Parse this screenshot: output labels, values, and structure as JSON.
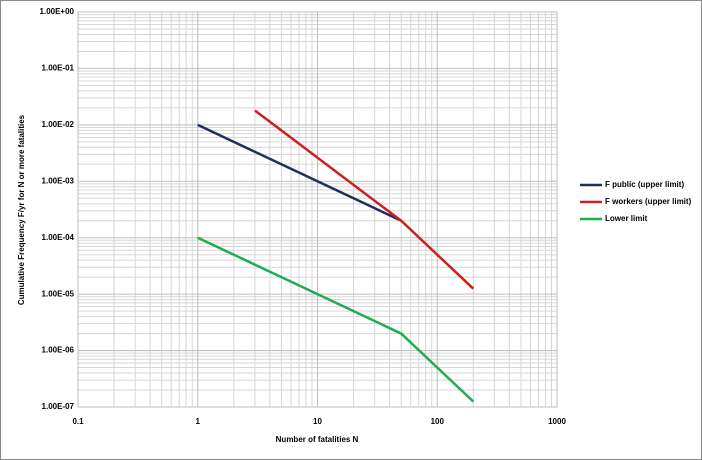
{
  "chart_data": {
    "type": "line",
    "x_label": "Number of fatalities N",
    "y_label": "Cumulative Frequency F/yr for N or more fatalities",
    "log_x": true,
    "log_y": true,
    "grid": true,
    "legend": "right",
    "xlim": [
      0.1,
      1000
    ],
    "xticks": [
      0.1,
      1,
      10,
      100,
      1000
    ],
    "ylim": [
      1e-07,
      1
    ],
    "yticks": [
      {
        "value": 1e-07,
        "label": "1.00E-07"
      },
      {
        "value": 1e-06,
        "label": "1.00E-06"
      },
      {
        "value": 1e-05,
        "label": "1.00E-05"
      },
      {
        "value": 0.0001,
        "label": "1.00E-04"
      },
      {
        "value": 0.001,
        "label": "1.00E-03"
      },
      {
        "value": 0.01,
        "label": "1.00E-02"
      },
      {
        "value": 0.1,
        "label": "1.00E-01"
      },
      {
        "value": 1,
        "label": "1.00E+00"
      }
    ],
    "series": [
      {
        "name": "F public (upper limit)",
        "color": "#1f2f5f",
        "x": [
          1,
          50
        ],
        "values": [
          0.01,
          0.0002
        ]
      },
      {
        "name": "F workers (upper limit)",
        "color": "#cc2020",
        "x": [
          3,
          50,
          200
        ],
        "values": [
          0.018,
          0.0002,
          1.25e-05
        ]
      },
      {
        "name": "Lower limit",
        "color": "#20ad50",
        "x": [
          1,
          50,
          200
        ],
        "values": [
          0.0001,
          2e-06,
          1.25e-07
        ]
      }
    ]
  }
}
